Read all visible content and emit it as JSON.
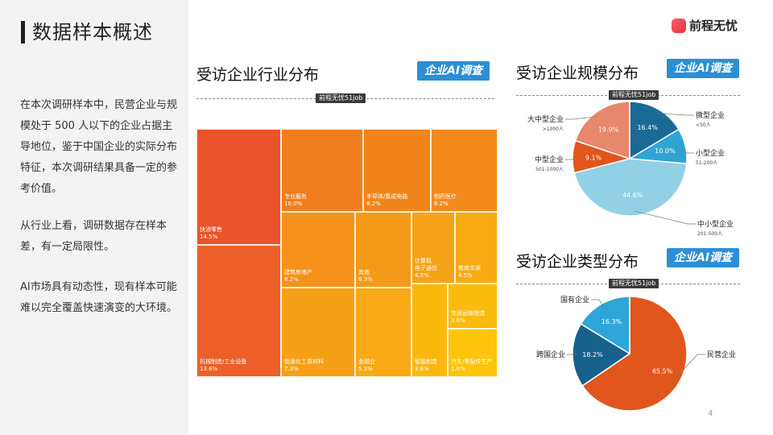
{
  "page": {
    "title": "数据样本概述",
    "page_number": "4",
    "paragraphs": [
      "在本次调研样本中，民营企业与规模处于 500 人以下的企业占据主导地位，鉴于中国企业的实际分布特征，本次调研结果具备一定的参考价值。",
      "从行业上看，调研数据存在样本差，有一定局限性。",
      "AI市场具有动态性，现有样本可能难以完全覆盖快速演变的大环境。"
    ],
    "logo_text": "前程无忧",
    "source_label": "前程无忧51job",
    "badge_label": "企业AI调查"
  },
  "sections": {
    "industry": "受访企业行业分布",
    "scale": "受访企业规模分布",
    "type": "受访企业类型分布"
  },
  "chart_data": [
    {
      "type": "treemap",
      "title": "受访企业行业分布",
      "items": [
        {
          "name": "快消零售",
          "value": 14.5,
          "label": "14.5%",
          "color": "#e9542a"
        },
        {
          "name": "机械制造/工业设备",
          "value": 13.6,
          "label": "13.6%",
          "color": "#ec5f28"
        },
        {
          "name": "专业服务",
          "value": 10.0,
          "label": "10.0%",
          "color": "#f07e1e"
        },
        {
          "name": "半导体/集成电路",
          "value": 8.2,
          "label": "8.2%",
          "color": "#f1851c"
        },
        {
          "name": "制药医疗",
          "value": 8.2,
          "label": "8.2%",
          "color": "#f28a1c"
        },
        {
          "name": "建筑房地产",
          "value": 8.2,
          "label": "8.2%",
          "color": "#f4921b"
        },
        {
          "name": "能源化工原材料",
          "value": 7.3,
          "label": "7.3%",
          "color": "#f6a016"
        },
        {
          "name": "其他",
          "value": 6.3,
          "label": "6.3%",
          "color": "#f59a18"
        },
        {
          "name": "金融业",
          "value": 5.5,
          "label": "5.5%",
          "color": "#f8a913"
        },
        {
          "name": "计算机\n电子通信",
          "value": 4.5,
          "label": "4.5%",
          "color": "#f6a317"
        },
        {
          "name": "教育文娱",
          "value": 4.5,
          "label": "4.5%",
          "color": "#f8aa13"
        },
        {
          "name": "智能制造",
          "value": 3.6,
          "label": "3.6%",
          "color": "#fab80f"
        },
        {
          "name": "交通运输物流",
          "value": 3.6,
          "label": "3.6%",
          "color": "#fbbb0e"
        },
        {
          "name": "汽车/零配件生产",
          "value": 1.8,
          "label": "1.8%",
          "color": "#fcc40b"
        }
      ]
    },
    {
      "type": "pie",
      "title": "受访企业规模分布",
      "slices": [
        {
          "name": "微型企业",
          "sub": "<50人",
          "value": 16.4,
          "label": "16.4%",
          "color": "#1a6a96"
        },
        {
          "name": "小型企业",
          "sub": "51-200人",
          "value": 10.0,
          "label": "10.0%",
          "color": "#2fa4d4"
        },
        {
          "name": "中小型企业",
          "sub": "201-500人",
          "value": 44.6,
          "label": "44.6%",
          "color": "#92d0e6"
        },
        {
          "name": "中型企业",
          "sub": "501-1000人",
          "value": 9.1,
          "label": "9.1%",
          "color": "#e0561c"
        },
        {
          "name": "大中型企业",
          "sub": ">1000人",
          "value": 19.9,
          "label": "19.9%",
          "color": "#e8876a"
        }
      ]
    },
    {
      "type": "pie",
      "title": "受访企业类型分布",
      "slices": [
        {
          "name": "民营企业",
          "value": 65.5,
          "label": "65.5%",
          "color": "#e0561c"
        },
        {
          "name": "跨国企业",
          "value": 18.2,
          "label": "18.2%",
          "color": "#17628d"
        },
        {
          "name": "国有企业",
          "value": 16.3,
          "label": "16.3%",
          "color": "#2ea6da"
        }
      ]
    }
  ]
}
